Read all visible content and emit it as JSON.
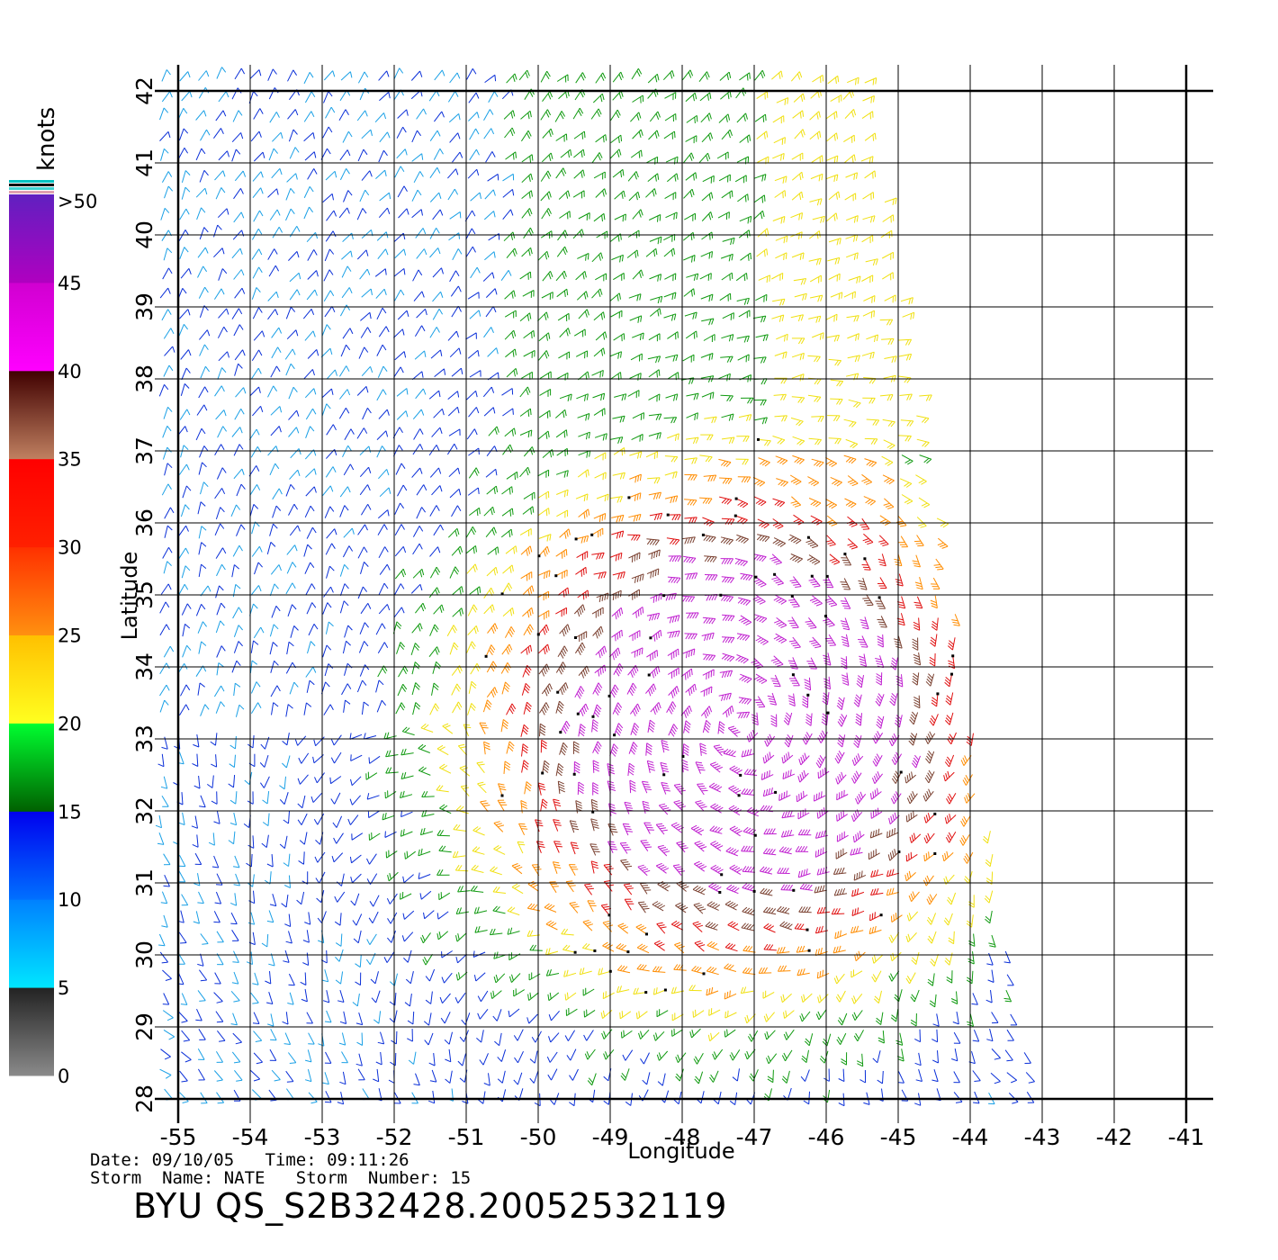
{
  "map": {
    "x_axis_label": "Longitude",
    "y_axis_label": "Latitude",
    "lon_ticks": [
      "-55",
      "-54",
      "-53",
      "-52",
      "-51",
      "-50",
      "-49",
      "-48",
      "-47",
      "-46",
      "-45",
      "-44",
      "-43",
      "-42",
      "-41"
    ],
    "lat_ticks": [
      "28",
      "29",
      "30",
      "31",
      "32",
      "33",
      "34",
      "35",
      "36",
      "37",
      "38",
      "39",
      "40",
      "41",
      "42"
    ],
    "lon_range": [
      -55,
      -41
    ],
    "lat_range": [
      28,
      42
    ],
    "grid": true,
    "field_description": "scatterometer wind barbs",
    "storm_center_approx": {
      "lon": -47.2,
      "lat": 33.2
    }
  },
  "legend": {
    "unit": "knots",
    "labels": [
      ">50",
      "45",
      "40",
      "35",
      "30",
      "25",
      "20",
      "15",
      "10",
      "5",
      "0"
    ],
    "bands": [
      {
        "min": 0,
        "max": 5,
        "colors": [
          "#8a8a8a",
          "#222222"
        ]
      },
      {
        "min": 5,
        "max": 10,
        "colors": [
          "#00e6ff",
          "#0080ff"
        ]
      },
      {
        "min": 10,
        "max": 15,
        "colors": [
          "#0070ff",
          "#0000ee"
        ]
      },
      {
        "min": 15,
        "max": 20,
        "colors": [
          "#006000",
          "#00ff30"
        ]
      },
      {
        "min": 20,
        "max": 25,
        "colors": [
          "#ffff20",
          "#ffc000"
        ]
      },
      {
        "min": 25,
        "max": 30,
        "colors": [
          "#ff9010",
          "#ff3000"
        ]
      },
      {
        "min": 30,
        "max": 35,
        "colors": [
          "#ff2000",
          "#ff0000"
        ]
      },
      {
        "min": 35,
        "max": 40,
        "colors": [
          "#c08060",
          "#400000"
        ]
      },
      {
        "min": 40,
        "max": 45,
        "colors": [
          "#ff00ff",
          "#d000d0"
        ]
      },
      {
        "min": 45,
        "max": 50,
        "colors": [
          "#b000c0",
          "#6020c0"
        ]
      }
    ]
  },
  "footer": {
    "line1": "Date: 09/10/05   Time: 09:11:26",
    "line2": "Storm  Name: NATE   Storm  Number: 15",
    "title": "BYU  QS_S2B32428.20052532119"
  }
}
